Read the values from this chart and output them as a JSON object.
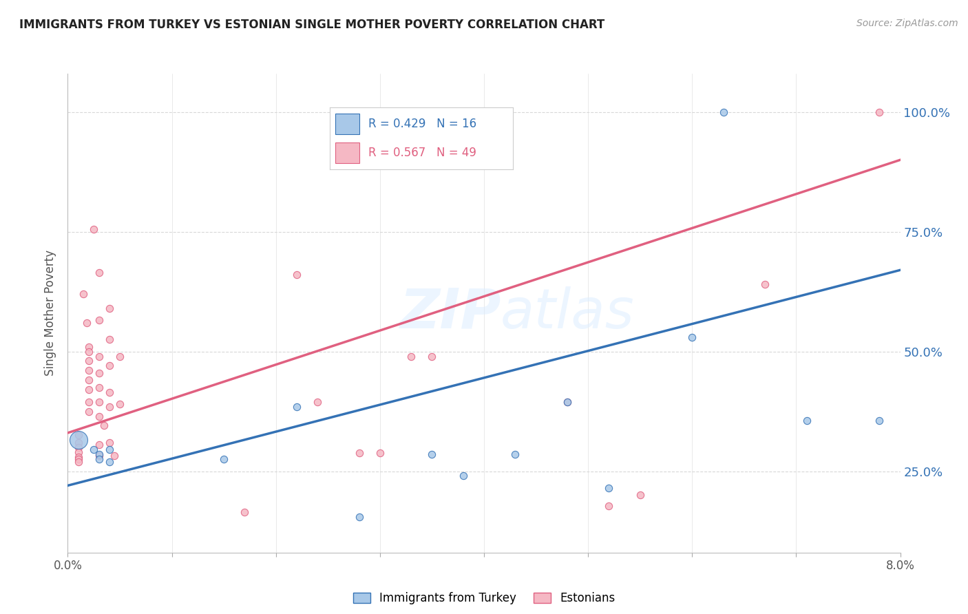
{
  "title": "IMMIGRANTS FROM TURKEY VS ESTONIAN SINGLE MOTHER POVERTY CORRELATION CHART",
  "source": "Source: ZipAtlas.com",
  "ylabel": "Single Mother Poverty",
  "legend_blue_label": "Immigrants from Turkey",
  "legend_pink_label": "Estonians",
  "watermark": "ZIPatlas",
  "blue_color": "#a8c8e8",
  "pink_color": "#f5b8c4",
  "blue_line_color": "#3472b5",
  "pink_line_color": "#e06080",
  "grid_color": "#d8d8d8",
  "xlim": [
    0.0,
    0.08
  ],
  "ylim": [
    0.08,
    1.08
  ],
  "yticks": [
    0.25,
    0.5,
    0.75,
    1.0
  ],
  "ytick_labels": [
    "25.0%",
    "50.0%",
    "75.0%",
    "100.0%"
  ],
  "blue_points": [
    [
      0.001,
      0.315,
      350
    ],
    [
      0.0025,
      0.295,
      55
    ],
    [
      0.003,
      0.285,
      55
    ],
    [
      0.003,
      0.275,
      55
    ],
    [
      0.004,
      0.295,
      55
    ],
    [
      0.004,
      0.27,
      55
    ],
    [
      0.015,
      0.275,
      55
    ],
    [
      0.022,
      0.385,
      55
    ],
    [
      0.028,
      0.155,
      55
    ],
    [
      0.035,
      0.285,
      55
    ],
    [
      0.038,
      0.24,
      55
    ],
    [
      0.043,
      0.285,
      55
    ],
    [
      0.048,
      0.395,
      55
    ],
    [
      0.052,
      0.215,
      55
    ],
    [
      0.06,
      0.53,
      55
    ],
    [
      0.063,
      1.0,
      55
    ],
    [
      0.071,
      0.355,
      55
    ],
    [
      0.078,
      0.355,
      55
    ]
  ],
  "pink_points": [
    [
      0.001,
      0.325,
      55
    ],
    [
      0.001,
      0.31,
      55
    ],
    [
      0.001,
      0.3,
      55
    ],
    [
      0.001,
      0.29,
      55
    ],
    [
      0.001,
      0.28,
      55
    ],
    [
      0.001,
      0.275,
      55
    ],
    [
      0.001,
      0.27,
      55
    ],
    [
      0.0015,
      0.62,
      55
    ],
    [
      0.0018,
      0.56,
      55
    ],
    [
      0.002,
      0.51,
      55
    ],
    [
      0.002,
      0.5,
      55
    ],
    [
      0.002,
      0.48,
      55
    ],
    [
      0.002,
      0.46,
      55
    ],
    [
      0.002,
      0.44,
      55
    ],
    [
      0.002,
      0.42,
      55
    ],
    [
      0.002,
      0.395,
      55
    ],
    [
      0.002,
      0.375,
      55
    ],
    [
      0.0025,
      0.755,
      55
    ],
    [
      0.003,
      0.665,
      55
    ],
    [
      0.003,
      0.565,
      55
    ],
    [
      0.003,
      0.49,
      55
    ],
    [
      0.003,
      0.455,
      55
    ],
    [
      0.003,
      0.425,
      55
    ],
    [
      0.003,
      0.395,
      55
    ],
    [
      0.003,
      0.365,
      55
    ],
    [
      0.0035,
      0.345,
      55
    ],
    [
      0.003,
      0.305,
      55
    ],
    [
      0.003,
      0.282,
      55
    ],
    [
      0.004,
      0.59,
      55
    ],
    [
      0.004,
      0.525,
      55
    ],
    [
      0.004,
      0.47,
      55
    ],
    [
      0.004,
      0.415,
      55
    ],
    [
      0.004,
      0.385,
      55
    ],
    [
      0.004,
      0.31,
      55
    ],
    [
      0.0045,
      0.282,
      55
    ],
    [
      0.005,
      0.49,
      55
    ],
    [
      0.005,
      0.39,
      55
    ],
    [
      0.017,
      0.165,
      55
    ],
    [
      0.022,
      0.66,
      55
    ],
    [
      0.024,
      0.395,
      55
    ],
    [
      0.028,
      0.288,
      55
    ],
    [
      0.03,
      0.288,
      55
    ],
    [
      0.033,
      0.49,
      55
    ],
    [
      0.035,
      0.49,
      55
    ],
    [
      0.048,
      0.395,
      55
    ],
    [
      0.052,
      0.178,
      55
    ],
    [
      0.055,
      0.2,
      55
    ],
    [
      0.067,
      0.64,
      55
    ],
    [
      0.078,
      1.0,
      55
    ]
  ],
  "blue_trend_x": [
    0.0,
    0.08
  ],
  "blue_trend_y": [
    0.22,
    0.67
  ],
  "pink_trend_x": [
    0.0,
    0.08
  ],
  "pink_trend_y": [
    0.33,
    0.9
  ]
}
